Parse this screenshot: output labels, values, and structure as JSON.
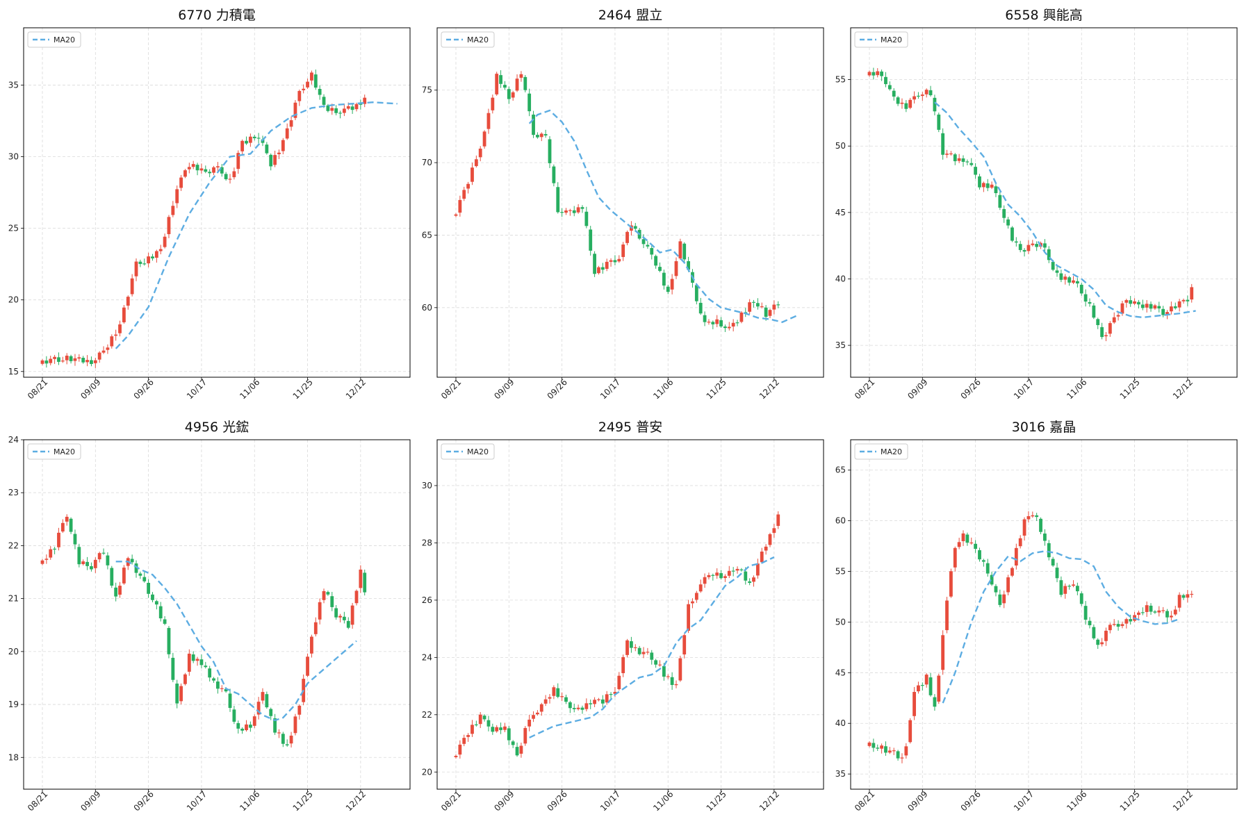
{
  "colors": {
    "up": "#e74c3c",
    "down": "#27ae60",
    "ma": "#5dade2",
    "grid": "#d9d9d9"
  },
  "chart_data": [
    {
      "type": "candlestick",
      "title": "6770 力積電",
      "legend": [
        "MA20"
      ],
      "legend_position": "top-left",
      "grid": true,
      "x_ticks": [
        "08/21",
        "09/09",
        "09/26",
        "10/17",
        "11/06",
        "11/25",
        "12/12"
      ],
      "y_ticks": [
        15,
        20,
        25,
        30,
        35
      ],
      "ylim": [
        14.6,
        39.0
      ],
      "n": 80,
      "ma_start": 18,
      "pattern": [
        1,
        -1,
        1,
        1,
        -1,
        -1,
        1,
        -1,
        1,
        1,
        -1,
        1,
        -1,
        -1,
        1,
        1,
        -1,
        1,
        -1,
        1
      ],
      "path": [
        [
          0,
          15.7
        ],
        [
          6,
          15.9
        ],
        [
          12,
          15.7
        ],
        [
          15,
          16.3
        ],
        [
          19,
          18.2
        ],
        [
          23,
          22.5
        ],
        [
          27,
          23.0
        ],
        [
          29,
          23.4
        ],
        [
          33,
          27.8
        ],
        [
          36,
          29.5
        ],
        [
          40,
          28.8
        ],
        [
          43,
          29.2
        ],
        [
          46,
          28.3
        ],
        [
          49,
          31.0
        ],
        [
          53,
          31.5
        ],
        [
          56,
          29.5
        ],
        [
          59,
          31.0
        ],
        [
          63,
          34.5
        ],
        [
          66,
          35.8
        ],
        [
          69,
          33.4
        ],
        [
          73,
          33.2
        ],
        [
          76,
          33.4
        ],
        [
          79,
          34.0
        ],
        [
          83,
          33.8
        ],
        [
          87,
          35.3
        ]
      ],
      "ma_path": [
        [
          18,
          16.6
        ],
        [
          21,
          17.5
        ],
        [
          26,
          19.5
        ],
        [
          31,
          23.0
        ],
        [
          36,
          26.0
        ],
        [
          41,
          28.2
        ],
        [
          46,
          30.0
        ],
        [
          51,
          30.2
        ],
        [
          56,
          31.8
        ],
        [
          61,
          32.8
        ],
        [
          66,
          33.4
        ],
        [
          71,
          33.6
        ],
        [
          76,
          33.7
        ],
        [
          81,
          33.8
        ],
        [
          87,
          33.7
        ]
      ]
    },
    {
      "type": "candlestick",
      "title": "2464 盟立",
      "legend": [
        "MA20"
      ],
      "legend_position": "top-left",
      "grid": true,
      "x_ticks": [
        "08/21",
        "09/09",
        "09/26",
        "10/17",
        "11/06",
        "11/25",
        "12/12"
      ],
      "y_ticks": [
        60,
        65,
        70,
        75
      ],
      "ylim": [
        55.2,
        79.3
      ],
      "n": 80,
      "ma_start": 18,
      "pattern": [
        -1,
        1,
        1,
        -1,
        1,
        -1,
        -1,
        1,
        1,
        -1,
        1,
        -1,
        1,
        -1,
        -1,
        1,
        -1,
        1,
        1,
        -1
      ],
      "path": [
        [
          0,
          66.5
        ],
        [
          4,
          69.5
        ],
        [
          7,
          72.0
        ],
        [
          10,
          76.0
        ],
        [
          13,
          74.5
        ],
        [
          16,
          76.2
        ],
        [
          19,
          72.0
        ],
        [
          22,
          71.8
        ],
        [
          25,
          66.8
        ],
        [
          28,
          66.5
        ],
        [
          31,
          67.0
        ],
        [
          34,
          62.5
        ],
        [
          37,
          63.0
        ],
        [
          40,
          63.5
        ],
        [
          43,
          65.8
        ],
        [
          46,
          64.5
        ],
        [
          49,
          63.0
        ],
        [
          52,
          61.0
        ],
        [
          55,
          64.5
        ],
        [
          58,
          61.5
        ],
        [
          61,
          58.8
        ],
        [
          64,
          59.0
        ],
        [
          67,
          58.5
        ],
        [
          70,
          59.5
        ],
        [
          73,
          60.5
        ],
        [
          76,
          59.5
        ],
        [
          79,
          60.3
        ],
        [
          82,
          59.2
        ],
        [
          84,
          60.8
        ]
      ],
      "ma_path": [
        [
          18,
          72.7
        ],
        [
          20,
          73.3
        ],
        [
          23,
          73.6
        ],
        [
          26,
          72.8
        ],
        [
          29,
          71.5
        ],
        [
          32,
          69.5
        ],
        [
          35,
          67.6
        ],
        [
          38,
          66.7
        ],
        [
          41,
          66.0
        ],
        [
          44,
          65.3
        ],
        [
          47,
          64.6
        ],
        [
          50,
          63.8
        ],
        [
          53,
          64.0
        ],
        [
          56,
          63.1
        ],
        [
          59,
          61.6
        ],
        [
          62,
          60.6
        ],
        [
          65,
          60.0
        ],
        [
          68,
          59.8
        ],
        [
          71,
          59.6
        ],
        [
          74,
          59.3
        ],
        [
          77,
          59.2
        ],
        [
          80,
          59.0
        ],
        [
          84,
          59.5
        ]
      ]
    },
    {
      "type": "candlestick",
      "title": "6558 興能高",
      "legend": [
        "MA20"
      ],
      "legend_position": "top-left",
      "grid": true,
      "x_ticks": [
        "08/21",
        "09/09",
        "09/26",
        "10/17",
        "11/06",
        "11/25",
        "12/12"
      ],
      "y_ticks": [
        35,
        40,
        45,
        50,
        55
      ],
      "ylim": [
        32.6,
        58.9
      ],
      "n": 80,
      "ma_start": 16,
      "pattern": [
        1,
        -1,
        1,
        -1,
        -1,
        1,
        1,
        -1,
        1,
        -1,
        1,
        1,
        -1,
        -1,
        1,
        -1,
        1,
        1,
        -1,
        1
      ],
      "path": [
        [
          0,
          55.5
        ],
        [
          3,
          55.5
        ],
        [
          6,
          53.5
        ],
        [
          9,
          53.0
        ],
        [
          12,
          54.0
        ],
        [
          15,
          54.0
        ],
        [
          18,
          49.5
        ],
        [
          21,
          49.0
        ],
        [
          24,
          49.0
        ],
        [
          27,
          47.0
        ],
        [
          30,
          47.0
        ],
        [
          32,
          45.5
        ],
        [
          35,
          43.0
        ],
        [
          37,
          42.0
        ],
        [
          40,
          42.5
        ],
        [
          43,
          42.5
        ],
        [
          45,
          40.5
        ],
        [
          48,
          40.0
        ],
        [
          51,
          39.5
        ],
        [
          54,
          38.0
        ],
        [
          57,
          35.5
        ],
        [
          60,
          37.0
        ],
        [
          63,
          38.5
        ],
        [
          66,
          38.0
        ],
        [
          69,
          38.0
        ],
        [
          72,
          37.5
        ],
        [
          75,
          38.0
        ],
        [
          78,
          38.5
        ],
        [
          80,
          40.0
        ]
      ],
      "ma_path": [
        [
          16,
          53.3
        ],
        [
          19,
          52.5
        ],
        [
          22,
          51.3
        ],
        [
          25,
          50.3
        ],
        [
          28,
          49.2
        ],
        [
          31,
          47.2
        ],
        [
          34,
          45.6
        ],
        [
          37,
          44.7
        ],
        [
          40,
          43.5
        ],
        [
          43,
          42.0
        ],
        [
          46,
          41.0
        ],
        [
          49,
          40.5
        ],
        [
          52,
          40.0
        ],
        [
          55,
          39.2
        ],
        [
          58,
          38.0
        ],
        [
          61,
          37.5
        ],
        [
          64,
          37.2
        ],
        [
          67,
          37.1
        ],
        [
          70,
          37.2
        ],
        [
          73,
          37.3
        ],
        [
          76,
          37.4
        ],
        [
          80,
          37.6
        ]
      ]
    },
    {
      "type": "candlestick",
      "title": "4956 光鋐",
      "legend": [
        "MA20"
      ],
      "legend_position": "top-left",
      "grid": true,
      "x_ticks": [
        "08/21",
        "09/09",
        "09/26",
        "10/17",
        "11/06",
        "11/25",
        "12/12"
      ],
      "y_ticks": [
        18,
        19,
        20,
        21,
        22,
        23,
        24
      ],
      "ylim": [
        17.4,
        24.0
      ],
      "n": 80,
      "ma_start": 18,
      "pattern": [
        1,
        -1,
        1,
        -1,
        1,
        1,
        -1,
        -1,
        1,
        -1,
        1,
        -1,
        -1,
        1,
        1,
        -1,
        1,
        -1,
        1,
        -1
      ],
      "path": [
        [
          0,
          21.7
        ],
        [
          3,
          22.0
        ],
        [
          6,
          22.6
        ],
        [
          9,
          21.7
        ],
        [
          12,
          21.6
        ],
        [
          15,
          21.9
        ],
        [
          18,
          21.0
        ],
        [
          21,
          21.8
        ],
        [
          24,
          21.4
        ],
        [
          27,
          21.0
        ],
        [
          30,
          20.5
        ],
        [
          33,
          19.0
        ],
        [
          36,
          19.9
        ],
        [
          39,
          19.8
        ],
        [
          42,
          19.4
        ],
        [
          45,
          19.2
        ],
        [
          48,
          18.5
        ],
        [
          51,
          18.6
        ],
        [
          54,
          19.2
        ],
        [
          57,
          18.5
        ],
        [
          60,
          18.2
        ],
        [
          63,
          19.0
        ],
        [
          66,
          20.3
        ],
        [
          69,
          21.2
        ],
        [
          72,
          20.7
        ],
        [
          75,
          20.5
        ],
        [
          78,
          21.5
        ],
        [
          80,
          20.8
        ]
      ],
      "ma_path": [
        [
          18,
          21.7
        ],
        [
          21,
          21.7
        ],
        [
          24,
          21.55
        ],
        [
          27,
          21.45
        ],
        [
          30,
          21.2
        ],
        [
          33,
          20.9
        ],
        [
          36,
          20.5
        ],
        [
          39,
          20.1
        ],
        [
          42,
          19.8
        ],
        [
          45,
          19.3
        ],
        [
          48,
          19.2
        ],
        [
          51,
          19.0
        ],
        [
          54,
          18.8
        ],
        [
          57,
          18.7
        ],
        [
          59,
          18.75
        ],
        [
          62,
          19.0
        ],
        [
          65,
          19.4
        ],
        [
          68,
          19.6
        ],
        [
          71,
          19.8
        ],
        [
          74,
          20.0
        ],
        [
          77,
          20.2
        ]
      ]
    },
    {
      "type": "candlestick",
      "title": "2495 普安",
      "legend": [
        "MA20"
      ],
      "legend_position": "top-left",
      "grid": true,
      "x_ticks": [
        "08/21",
        "09/09",
        "09/26",
        "10/17",
        "11/06",
        "11/25",
        "12/12"
      ],
      "y_ticks": [
        20,
        22,
        24,
        26,
        28,
        30
      ],
      "ylim": [
        19.4,
        31.6
      ],
      "n": 80,
      "ma_start": 18,
      "pattern": [
        -1,
        1,
        1,
        -1,
        1,
        -1,
        1,
        1,
        -1,
        -1,
        1,
        -1,
        1,
        -1,
        1,
        1,
        -1,
        1,
        -1,
        -1
      ],
      "path": [
        [
          0,
          20.6
        ],
        [
          3,
          21.4
        ],
        [
          6,
          21.9
        ],
        [
          9,
          21.5
        ],
        [
          12,
          21.5
        ],
        [
          15,
          20.5
        ],
        [
          18,
          21.9
        ],
        [
          21,
          22.3
        ],
        [
          24,
          22.9
        ],
        [
          27,
          22.4
        ],
        [
          30,
          22.2
        ],
        [
          33,
          22.4
        ],
        [
          36,
          22.5
        ],
        [
          39,
          22.9
        ],
        [
          42,
          24.5
        ],
        [
          45,
          24.2
        ],
        [
          48,
          24.0
        ],
        [
          51,
          23.4
        ],
        [
          54,
          23.0
        ],
        [
          57,
          25.8
        ],
        [
          60,
          26.6
        ],
        [
          63,
          26.9
        ],
        [
          66,
          26.8
        ],
        [
          69,
          27.2
        ],
        [
          72,
          26.5
        ],
        [
          75,
          27.6
        ],
        [
          78,
          28.6
        ],
        [
          80,
          29.5
        ]
      ],
      "ma_path": [
        [
          18,
          21.2
        ],
        [
          21,
          21.4
        ],
        [
          24,
          21.6
        ],
        [
          27,
          21.7
        ],
        [
          30,
          21.8
        ],
        [
          33,
          21.9
        ],
        [
          36,
          22.2
        ],
        [
          39,
          22.7
        ],
        [
          42,
          23.0
        ],
        [
          45,
          23.3
        ],
        [
          48,
          23.4
        ],
        [
          51,
          23.7
        ],
        [
          54,
          24.5
        ],
        [
          57,
          25.0
        ],
        [
          60,
          25.3
        ],
        [
          63,
          25.9
        ],
        [
          66,
          26.5
        ],
        [
          69,
          26.8
        ],
        [
          72,
          27.2
        ],
        [
          75,
          27.3
        ],
        [
          78,
          27.5
        ]
      ]
    },
    {
      "type": "candlestick",
      "title": "3016 嘉晶",
      "legend": [
        "MA20"
      ],
      "legend_position": "top-left",
      "grid": true,
      "x_ticks": [
        "08/21",
        "09/09",
        "09/26",
        "10/17",
        "11/06",
        "11/25",
        "12/12"
      ],
      "y_ticks": [
        35,
        40,
        45,
        50,
        55,
        60,
        65
      ],
      "ylim": [
        33.5,
        68.0
      ],
      "n": 80,
      "ma_start": 18,
      "pattern": [
        1,
        -1,
        -1,
        1,
        -1,
        1,
        1,
        -1,
        1,
        -1,
        -1,
        1,
        1,
        -1,
        1,
        -1,
        1,
        -1,
        1,
        1
      ],
      "path": [
        [
          0,
          38.0
        ],
        [
          3,
          37.5
        ],
        [
          6,
          37.0
        ],
        [
          8,
          36.5
        ],
        [
          9,
          38.0
        ],
        [
          11,
          43.0
        ],
        [
          14,
          44.5
        ],
        [
          16,
          41.5
        ],
        [
          19,
          52.0
        ],
        [
          21,
          57.5
        ],
        [
          23,
          58.5
        ],
        [
          26,
          57.0
        ],
        [
          29,
          55.0
        ],
        [
          32,
          51.5
        ],
        [
          35,
          55.5
        ],
        [
          38,
          60.0
        ],
        [
          41,
          60.5
        ],
        [
          44,
          56.5
        ],
        [
          47,
          53.0
        ],
        [
          50,
          54.0
        ],
        [
          53,
          50.5
        ],
        [
          56,
          47.5
        ],
        [
          59,
          49.5
        ],
        [
          62,
          50.0
        ],
        [
          65,
          50.5
        ],
        [
          68,
          51.5
        ],
        [
          71,
          51.0
        ],
        [
          74,
          50.5
        ],
        [
          76,
          52.5
        ]
      ],
      "ma_path": [
        [
          18,
          42.0
        ],
        [
          21,
          45.0
        ],
        [
          25,
          50.0
        ],
        [
          28,
          53.0
        ],
        [
          31,
          55.0
        ],
        [
          34,
          56.5
        ],
        [
          37,
          56.0
        ],
        [
          40,
          56.8
        ],
        [
          43,
          57.0
        ],
        [
          46,
          56.8
        ],
        [
          49,
          56.3
        ],
        [
          52,
          56.2
        ],
        [
          55,
          55.5
        ],
        [
          58,
          53.0
        ],
        [
          61,
          51.5
        ],
        [
          64,
          50.5
        ],
        [
          67,
          50.1
        ],
        [
          70,
          49.8
        ],
        [
          73,
          49.9
        ],
        [
          76,
          50.3
        ]
      ]
    }
  ]
}
